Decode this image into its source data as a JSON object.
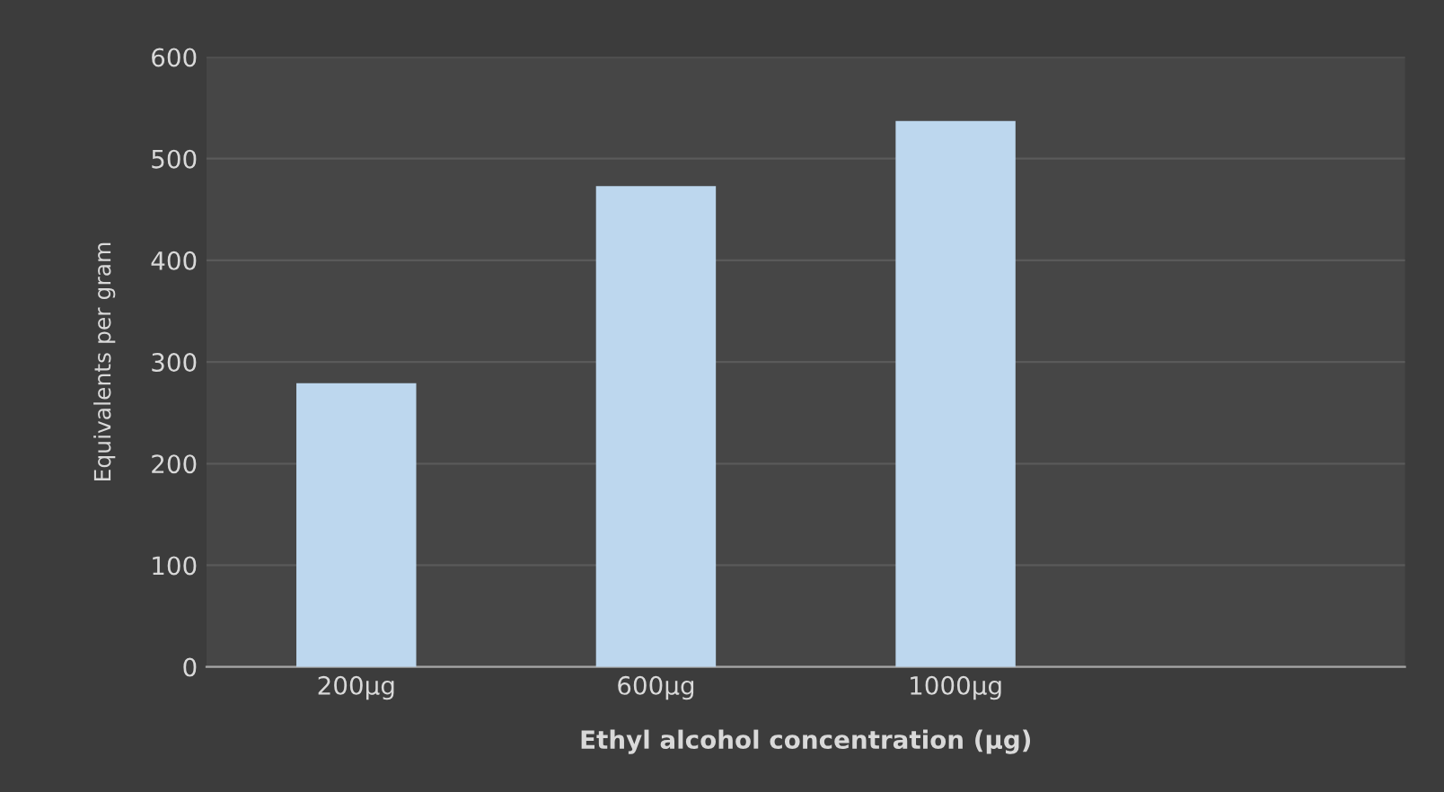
{
  "chart_data": {
    "type": "bar",
    "xlabel": "Ethyl alcohol concentration (µg)",
    "ylabel": "Equivalents per gram",
    "categories": [
      "200µg",
      "600µg",
      "1000µg",
      null
    ],
    "values": [
      279,
      473,
      537,
      null
    ],
    "color": "#bdd7ee",
    "ylim": [
      0,
      600
    ],
    "yticks": [
      0,
      100,
      200,
      300,
      400,
      500,
      600
    ],
    "grid": "y"
  }
}
